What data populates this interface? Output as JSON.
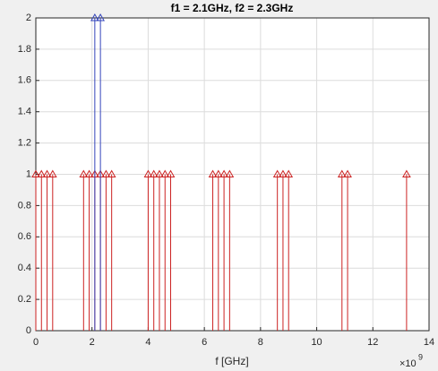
{
  "chart_data": {
    "type": "stem",
    "title": "f1 = 2.1GHz, f2 = 2.3GHz",
    "x_label": "f [GHz]",
    "x_exponent": {
      "base": "×10",
      "power": "9"
    },
    "series": [
      {
        "color": "#cc2222",
        "x": [
          0,
          0.2,
          0.4,
          0.6,
          1.7,
          1.9,
          2.1,
          2.3,
          2.5,
          2.7,
          4.0,
          4.2,
          4.4,
          4.6,
          4.8,
          6.3,
          6.5,
          6.7,
          6.9,
          8.6,
          8.8,
          9.0,
          10.9,
          11.1,
          13.2
        ],
        "values": [
          1,
          1,
          1,
          1,
          1,
          1,
          1,
          1,
          1,
          1,
          1,
          1,
          1,
          1,
          1,
          1,
          1,
          1,
          1,
          1,
          1,
          1,
          1,
          1,
          1
        ]
      },
      {
        "color": "#3344bb",
        "x": [
          2.1,
          2.3
        ],
        "values": [
          2,
          2
        ]
      }
    ],
    "xlim": [
      0,
      14
    ],
    "xticks": [
      0,
      2,
      4,
      6,
      8,
      10,
      12,
      14
    ],
    "ylim": [
      0,
      2
    ],
    "yticks": [
      0,
      0.2,
      0.4,
      0.6,
      0.8,
      1,
      1.2,
      1.4,
      1.6,
      1.8,
      2
    ],
    "grid": true
  }
}
